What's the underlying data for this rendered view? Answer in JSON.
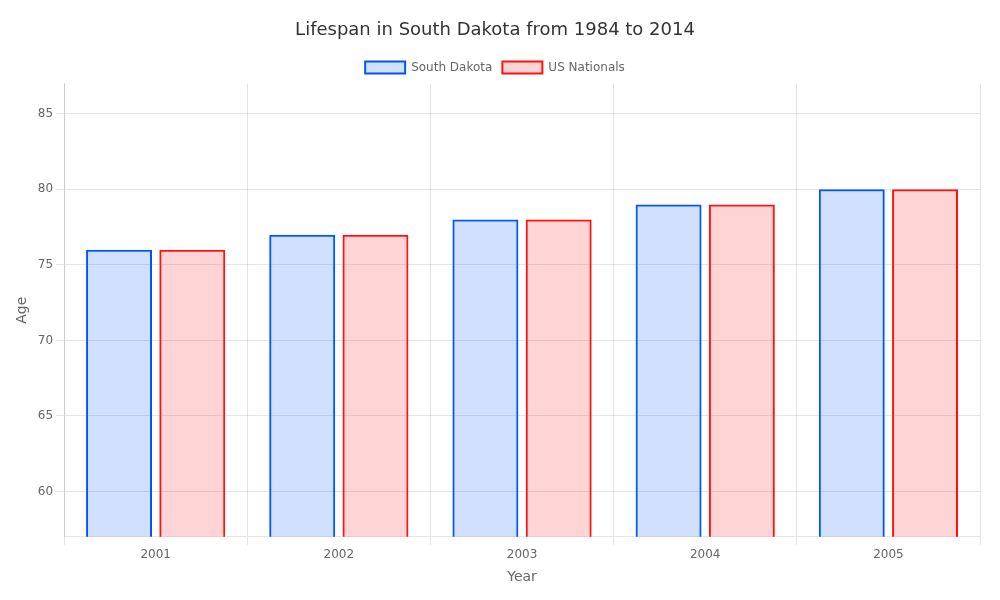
{
  "chart_data": {
    "type": "bar",
    "title": "Lifespan in South Dakota from 1984 to 2014",
    "xlabel": "Year",
    "ylabel": "Age",
    "categories": [
      2001,
      2002,
      2003,
      2004,
      2005
    ],
    "series": [
      {
        "name": "South Dakota",
        "color": "#0055ff",
        "values": [
          76,
          77,
          78,
          79,
          80
        ]
      },
      {
        "name": "US Nationals",
        "color": "#ff1111",
        "values": [
          76,
          77,
          78,
          79,
          80
        ]
      }
    ],
    "ylim": [
      57,
      87
    ],
    "yticks": [
      60,
      65,
      70,
      75,
      80,
      85
    ],
    "grid": true,
    "legend": "top"
  }
}
